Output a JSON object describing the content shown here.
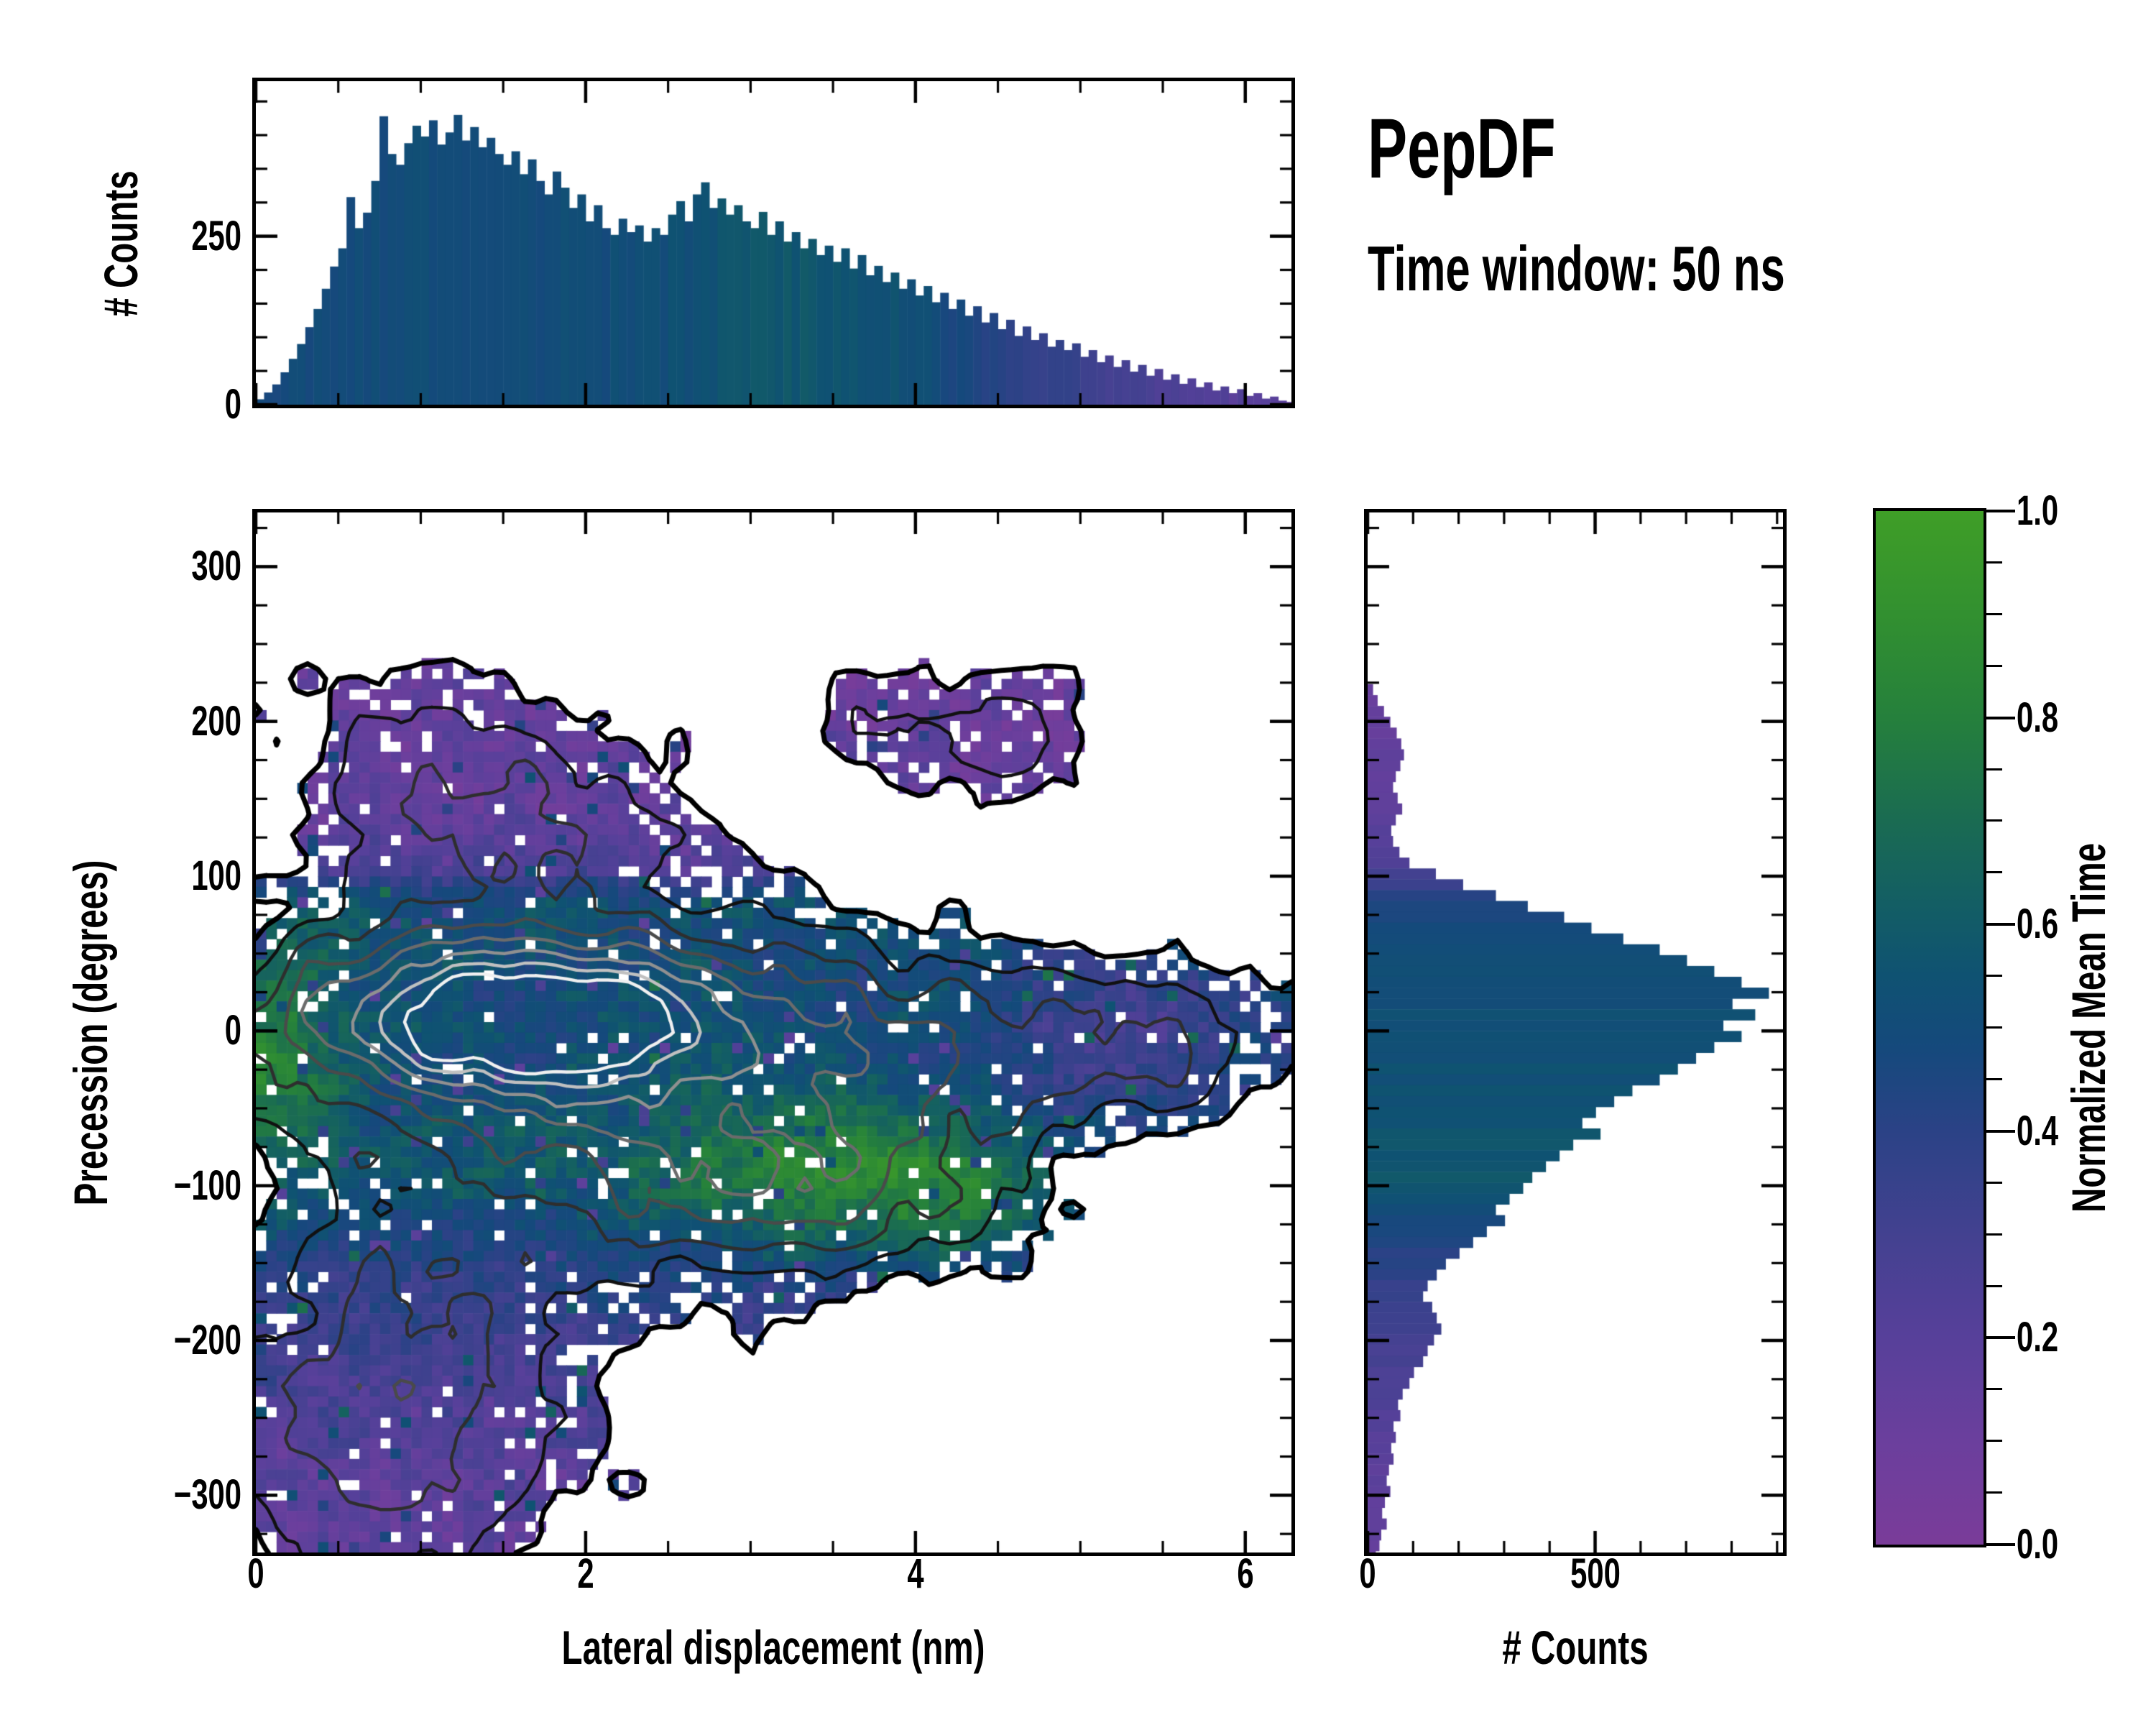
{
  "title": {
    "name": "PepDF",
    "subtitle": "Time window: 50 ns"
  },
  "chart_data": {
    "type": "heatmap",
    "description": "2D histogram of precession vs lateral displacement colored by normalized mean time, with nested density contours and marginal count histograms",
    "xlabel": "Lateral displacement (nm)",
    "ylabel": "Precession (degrees)",
    "top_ylabel": "# Counts",
    "right_xlabel": "# Counts",
    "colorbar_label": "Normalized Mean Time",
    "xlim": [
      0,
      6.28
    ],
    "ylim": [
      -337,
      335
    ],
    "axes": {
      "top_y": {
        "labels": [
          "0",
          "250"
        ],
        "values": [
          0,
          250
        ],
        "max": 480,
        "minor_step": 50
      },
      "main_x": {
        "labels": [
          "0",
          "2",
          "4",
          "6"
        ],
        "values": [
          0,
          2,
          4,
          6
        ],
        "max": 6.28,
        "minor_step": 0.5
      },
      "main_y": {
        "labels": [
          "300",
          "200",
          "100",
          "0",
          "−100",
          "−200",
          "−300"
        ],
        "values": [
          300,
          200,
          100,
          0,
          -100,
          -200,
          -300
        ],
        "top": 335,
        "bottom": -337,
        "minor_step": 25
      },
      "right_x": {
        "labels": [
          "0",
          "500"
        ],
        "values": [
          0,
          500
        ],
        "max": 913,
        "minor_step": 100
      },
      "colorbar": {
        "labels": [
          "1.0",
          "0.8",
          "0.6",
          "0.4",
          "0.2",
          "0.0"
        ],
        "values": [
          1.0,
          0.8,
          0.6,
          0.4,
          0.2,
          0.0
        ],
        "minor_step": 0.05
      }
    },
    "colormap_stops": [
      [
        0.0,
        "#7a3c99"
      ],
      [
        0.1,
        "#6b3f9d"
      ],
      [
        0.2,
        "#57409a"
      ],
      [
        0.3,
        "#434190"
      ],
      [
        0.4,
        "#2b4286"
      ],
      [
        0.48,
        "#15497c"
      ],
      [
        0.55,
        "#0f5272"
      ],
      [
        0.62,
        "#135e64"
      ],
      [
        0.7,
        "#1a6b52"
      ],
      [
        0.8,
        "#25803c"
      ],
      [
        0.9,
        "#329030"
      ],
      [
        1.0,
        "#3f9e27"
      ]
    ],
    "top_histogram": {
      "bin_start": 0,
      "bin_width": 0.05,
      "values": [
        8,
        18,
        30,
        48,
        68,
        90,
        115,
        142,
        172,
        205,
        232,
        308,
        262,
        285,
        332,
        428,
        372,
        356,
        388,
        414,
        398,
        422,
        386,
        404,
        430,
        392,
        412,
        382,
        396,
        372,
        356,
        376,
        342,
        364,
        332,
        312,
        346,
        322,
        292,
        312,
        272,
        296,
        262,
        252,
        276,
        256,
        266,
        242,
        262,
        252,
        282,
        302,
        272,
        312,
        330,
        292,
        306,
        282,
        296,
        272,
        262,
        286,
        252,
        272,
        242,
        256,
        232,
        246,
        222,
        236,
        212,
        232,
        202,
        222,
        192,
        206,
        182,
        196,
        172,
        186,
        162,
        176,
        152,
        166,
        142,
        156,
        132,
        146,
        122,
        136,
        112,
        126,
        102,
        116,
        96,
        106,
        86,
        96,
        81,
        91,
        71,
        81,
        63,
        73,
        56,
        66,
        49,
        59,
        43,
        53,
        37,
        45,
        31,
        39,
        26,
        33,
        21,
        27,
        17,
        23,
        13,
        17,
        9,
        12,
        6,
        4
      ],
      "mean_time_profile": [
        [
          0,
          0.48
        ],
        [
          0.5,
          0.5
        ],
        [
          1.0,
          0.5
        ],
        [
          1.5,
          0.52
        ],
        [
          2.0,
          0.5
        ],
        [
          2.5,
          0.52
        ],
        [
          2.9,
          0.56
        ],
        [
          3.3,
          0.58
        ],
        [
          3.7,
          0.56
        ],
        [
          4.0,
          0.52
        ],
        [
          4.3,
          0.46
        ],
        [
          4.6,
          0.4
        ],
        [
          4.9,
          0.35
        ],
        [
          5.2,
          0.3
        ],
        [
          5.5,
          0.26
        ],
        [
          5.8,
          0.22
        ],
        [
          6.1,
          0.18
        ],
        [
          6.3,
          0.16
        ]
      ]
    },
    "right_histogram": {
      "bin_start": 224,
      "bin_width": 7,
      "values": [
        12,
        22,
        36,
        50,
        64,
        74,
        80,
        72,
        62,
        56,
        66,
        76,
        62,
        52,
        56,
        70,
        92,
        150,
        210,
        282,
        352,
        432,
        492,
        562,
        642,
        702,
        762,
        822,
        882,
        802,
        852,
        782,
        822,
        762,
        722,
        682,
        642,
        582,
        542,
        502,
        472,
        512,
        452,
        422,
        392,
        362,
        342,
        312,
        282,
        302,
        262,
        232,
        202,
        172,
        152,
        132,
        122,
        142,
        152,
        162,
        146,
        132,
        122,
        102,
        92,
        77,
        67,
        72,
        57,
        62,
        52,
        57,
        47,
        42,
        50,
        38,
        32,
        42,
        30,
        26,
        18,
        10
      ],
      "mean_time_profile": [
        [
          224,
          0.12
        ],
        [
          160,
          0.15
        ],
        [
          120,
          0.2
        ],
        [
          100,
          0.3
        ],
        [
          85,
          0.45
        ],
        [
          50,
          0.5
        ],
        [
          0,
          0.52
        ],
        [
          -50,
          0.55
        ],
        [
          -90,
          0.58
        ],
        [
          -130,
          0.45
        ],
        [
          -170,
          0.35
        ],
        [
          -210,
          0.28
        ],
        [
          -260,
          0.2
        ],
        [
          -320,
          0.14
        ],
        [
          -350,
          0.12
        ]
      ]
    },
    "heatmap": {
      "grid": [
        100,
        100
      ],
      "seed": 7,
      "density_threshold": 0.15,
      "density_gaussians": [
        [
          1.55,
          12,
          1.45,
          50,
          1.0
        ],
        [
          2.15,
          -40,
          1.95,
          100,
          0.55
        ],
        [
          1.35,
          150,
          1.3,
          75,
          0.42
        ],
        [
          0.95,
          -225,
          1.15,
          100,
          0.46
        ],
        [
          4.5,
          -5,
          1.3,
          68,
          0.36
        ],
        [
          3.45,
          -105,
          1.15,
          58,
          0.4
        ],
        [
          4.55,
          190,
          0.6,
          45,
          0.34
        ],
        [
          0.55,
          -315,
          0.85,
          70,
          0.25
        ],
        [
          5.7,
          -10,
          0.75,
          52,
          0.22
        ],
        [
          3.7,
          200,
          0.5,
          35,
          0.18
        ]
      ],
      "noise": {
        "amp1": 0.085,
        "scale1": 5.2,
        "amp2": 0.05,
        "scale2": 2.4
      },
      "mean_time_vertical_profile": [
        [
          335,
          0.12
        ],
        [
          230,
          0.12
        ],
        [
          160,
          0.14
        ],
        [
          120,
          0.18
        ],
        [
          103,
          0.26
        ],
        [
          92,
          0.44
        ],
        [
          75,
          0.54
        ],
        [
          55,
          0.52
        ],
        [
          30,
          0.5
        ],
        [
          0,
          0.51
        ],
        [
          -30,
          0.53
        ],
        [
          -60,
          0.55
        ],
        [
          -90,
          0.57
        ],
        [
          -120,
          0.5
        ],
        [
          -140,
          0.44
        ],
        [
          -165,
          0.38
        ],
        [
          -200,
          0.32
        ],
        [
          -240,
          0.26
        ],
        [
          -280,
          0.2
        ],
        [
          -340,
          0.15
        ]
      ],
      "mean_time_bumps": [
        [
          3.5,
          -95,
          1.0,
          48,
          0.3
        ],
        [
          4.3,
          -120,
          0.6,
          40,
          0.12
        ],
        [
          0.08,
          -5,
          0.42,
          75,
          0.3
        ],
        [
          5.35,
          -10,
          0.85,
          80,
          -0.22
        ]
      ],
      "hole_base": 0.05,
      "hole_edge": 0.3,
      "contour_levels": [
        {
          "level": 0.15,
          "color": "#000000",
          "width": 7
        },
        {
          "level": 0.28,
          "color": "#111111",
          "width": 4.5
        },
        {
          "level": 0.42,
          "color": "#2e2e2e",
          "width": 4.5
        },
        {
          "level": 0.56,
          "color": "#4a4a4a",
          "width": 4.5
        },
        {
          "level": 0.7,
          "color": "#6b6b6b",
          "width": 4.5
        },
        {
          "level": 0.84,
          "color": "#909090",
          "width": 4.5
        },
        {
          "level": 0.98,
          "color": "#c0c0c0",
          "width": 4.5
        },
        {
          "level": 1.1,
          "color": "#f0f0f0",
          "width": 4.5
        }
      ]
    }
  }
}
